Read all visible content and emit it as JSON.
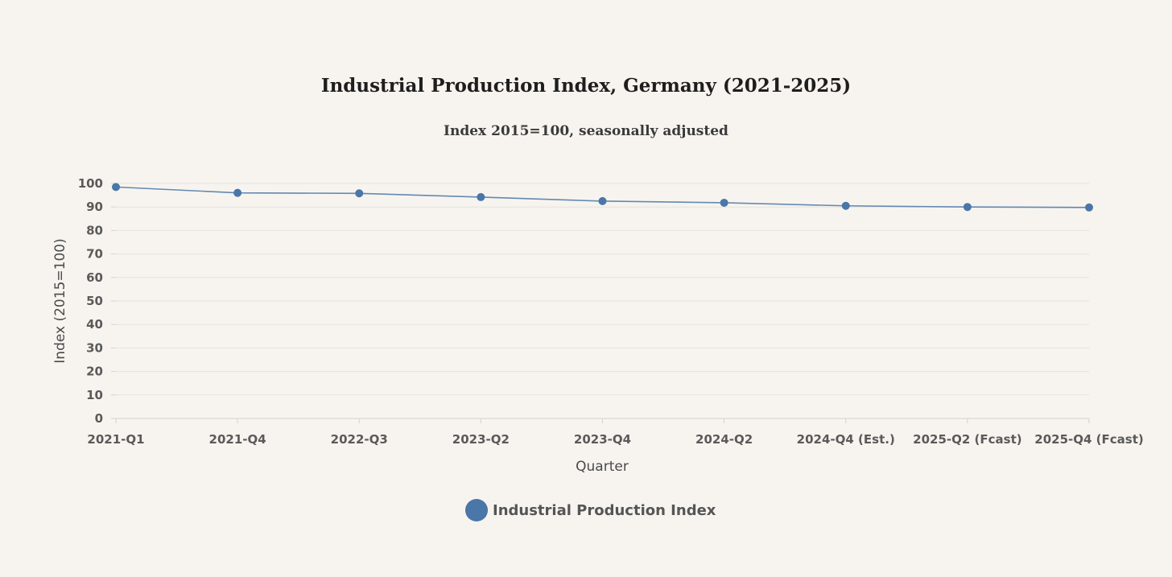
{
  "chart_data": {
    "type": "line",
    "title": "Industrial Production Index, Germany (2021-2025)",
    "subtitle": "Index 2015=100, seasonally adjusted",
    "xlabel": "Quarter",
    "ylabel": "Index (2015=100)",
    "categories": [
      "2021-Q1",
      "2021-Q4",
      "2022-Q3",
      "2023-Q2",
      "2023-Q4",
      "2024-Q2",
      "2024-Q4 (Est.)",
      "2025-Q2 (Fcast)",
      "2025-Q4 (Fcast)"
    ],
    "series": [
      {
        "name": "Industrial Production Index",
        "values": [
          98.5,
          96.0,
          95.8,
          94.2,
          92.5,
          91.8,
          90.5,
          90.0,
          89.8
        ],
        "color": "#4a76a8"
      }
    ],
    "ylim": [
      0,
      100
    ],
    "yticks": [
      0,
      10,
      20,
      30,
      40,
      50,
      60,
      70,
      80,
      90,
      100
    ],
    "grid": true,
    "legend": "bottom-center"
  }
}
